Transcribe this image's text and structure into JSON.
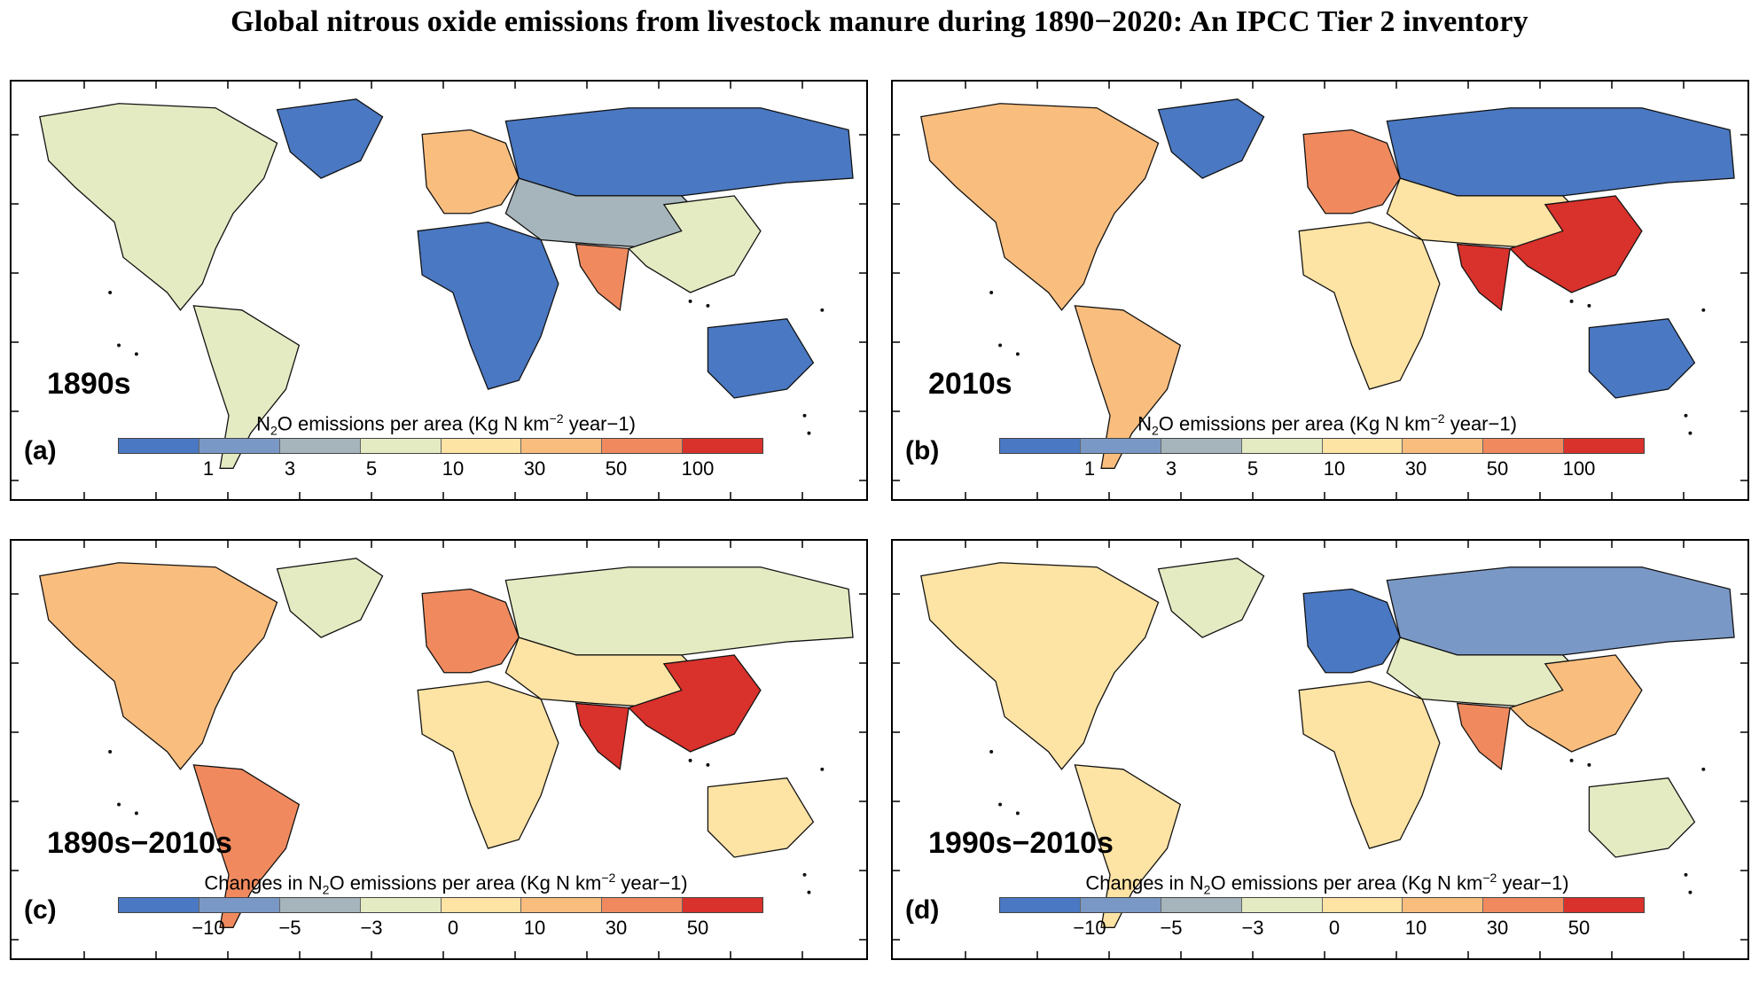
{
  "title": "Global nitrous oxide emissions from livestock manure during 1890−2020: An IPCC Tier 2 inventory",
  "colors": {
    "abs": [
      "#4a78c2",
      "#7a98c6",
      "#a5b5bb",
      "#e4ebc2",
      "#fde3a4",
      "#f9bd7e",
      "#f08a5e",
      "#d9312b"
    ],
    "chg": [
      "#4a78c2",
      "#7a98c6",
      "#a5b5bb",
      "#e4ebc2",
      "#fde3a4",
      "#f9bd7e",
      "#f08a5e",
      "#d9312b"
    ]
  },
  "panels": [
    {
      "letter": "(a)",
      "decade": "1890s",
      "legend_title_pre": "N",
      "legend_title_sub": "2",
      "legend_title_post": "O emissions per area (Kg N km",
      "legend_title_sup": "−2",
      "legend_title_end": " year−1)",
      "ticks": [
        "1",
        "3",
        "5",
        "10",
        "30",
        "50",
        "100"
      ],
      "palette": "abs",
      "region_levels": {
        "north_america": 3,
        "south_america": 3,
        "europe": 5,
        "africa": 0,
        "asia": 2,
        "south_asia": 6,
        "east_asia": 3,
        "australia": 0,
        "greenland": 0,
        "russia": 0
      }
    },
    {
      "letter": "(b)",
      "decade": "2010s",
      "legend_title_pre": "N",
      "legend_title_sub": "2",
      "legend_title_post": "O emissions per area (Kg N km",
      "legend_title_sup": "−2",
      "legend_title_end": " year−1)",
      "ticks": [
        "1",
        "3",
        "5",
        "10",
        "30",
        "50",
        "100"
      ],
      "palette": "abs",
      "region_levels": {
        "north_america": 5,
        "south_america": 5,
        "europe": 6,
        "africa": 4,
        "asia": 4,
        "south_asia": 7,
        "east_asia": 7,
        "australia": 0,
        "greenland": 0,
        "russia": 0
      }
    },
    {
      "letter": "(c)",
      "decade": "1890s−2010s",
      "legend_title_pre": "Changes in N",
      "legend_title_sub": "2",
      "legend_title_post": "O emissions per area (Kg N km",
      "legend_title_sup": "−2",
      "legend_title_end": " year−1)",
      "ticks": [
        "−10",
        "−5",
        "−3",
        "0",
        "10",
        "30",
        "50"
      ],
      "palette": "chg",
      "region_levels": {
        "north_america": 5,
        "south_america": 6,
        "europe": 6,
        "africa": 4,
        "asia": 4,
        "south_asia": 7,
        "east_asia": 7,
        "australia": 4,
        "greenland": 3,
        "russia": 3
      }
    },
    {
      "letter": "(d)",
      "decade": "1990s−2010s",
      "legend_title_pre": "Changes in N",
      "legend_title_sub": "2",
      "legend_title_post": "O emissions per area (Kg N km",
      "legend_title_sup": "−2",
      "legend_title_end": " year−1)",
      "ticks": [
        "−10",
        "−5",
        "−3",
        "0",
        "10",
        "30",
        "50"
      ],
      "palette": "chg",
      "region_levels": {
        "north_america": 4,
        "south_america": 4,
        "europe": 0,
        "africa": 4,
        "asia": 3,
        "south_asia": 6,
        "east_asia": 5,
        "australia": 3,
        "greenland": 3,
        "russia": 1
      }
    }
  ]
}
